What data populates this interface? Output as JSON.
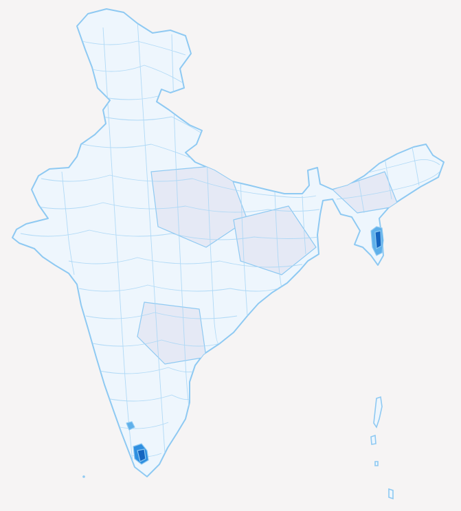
{
  "map": {
    "palette": {
      "background": "#f6f4f4",
      "fill_none": "#eef6fd",
      "fill_low": "#e5e9f5",
      "fill_mid": "#5fb0ea",
      "fill_high": "#2f8fe0",
      "fill_max": "#1565c0",
      "stroke": "#8ec9f2"
    },
    "highlighted_regions": [
      {
        "name": "northeast-hotspot",
        "level": "high"
      },
      {
        "name": "south-kerala-hotspot",
        "level": "high"
      },
      {
        "name": "south-kerala-minor",
        "level": "mid"
      }
    ]
  }
}
